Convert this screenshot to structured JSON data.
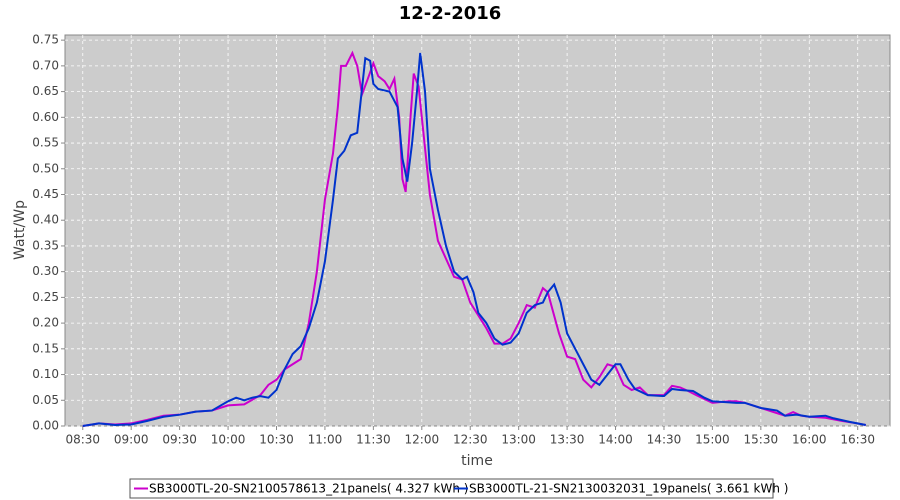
{
  "chart_data": {
    "type": "line",
    "title": "12-2-2016",
    "x_label": "time",
    "y_label": "Watt/Wp",
    "xlim": [
      499,
      1010
    ],
    "ylim": [
      0,
      0.76
    ],
    "xticks": [
      {
        "value": 510,
        "label": "08:30"
      },
      {
        "value": 540,
        "label": "09:00"
      },
      {
        "value": 570,
        "label": "09:30"
      },
      {
        "value": 600,
        "label": "10:00"
      },
      {
        "value": 630,
        "label": "10:30"
      },
      {
        "value": 660,
        "label": "11:00"
      },
      {
        "value": 690,
        "label": "11:30"
      },
      {
        "value": 720,
        "label": "12:00"
      },
      {
        "value": 750,
        "label": "12:30"
      },
      {
        "value": 780,
        "label": "13:00"
      },
      {
        "value": 810,
        "label": "13:30"
      },
      {
        "value": 840,
        "label": "14:00"
      },
      {
        "value": 870,
        "label": "14:30"
      },
      {
        "value": 900,
        "label": "15:00"
      },
      {
        "value": 930,
        "label": "15:30"
      },
      {
        "value": 960,
        "label": "16:00"
      },
      {
        "value": 990,
        "label": "16:30"
      }
    ],
    "yticks": [
      {
        "value": 0,
        "label": "0.00"
      },
      {
        "value": 0.05,
        "label": "0.05"
      },
      {
        "value": 0.1,
        "label": "0.10"
      },
      {
        "value": 0.15,
        "label": "0.15"
      },
      {
        "value": 0.2,
        "label": "0.20"
      },
      {
        "value": 0.25,
        "label": "0.25"
      },
      {
        "value": 0.3,
        "label": "0.30"
      },
      {
        "value": 0.35,
        "label": "0.35"
      },
      {
        "value": 0.4,
        "label": "0.40"
      },
      {
        "value": 0.45,
        "label": "0.45"
      },
      {
        "value": 0.5,
        "label": "0.50"
      },
      {
        "value": 0.55,
        "label": "0.55"
      },
      {
        "value": 0.6,
        "label": "0.60"
      },
      {
        "value": 0.65,
        "label": "0.65"
      },
      {
        "value": 0.7,
        "label": "0.70"
      },
      {
        "value": 0.75,
        "label": "0.75"
      }
    ],
    "grid": true,
    "series": [
      {
        "name": "SB3000TL-20-SN2100578613_21panels( 4.327 kWh )",
        "color": "#cc00cc",
        "x": [
          510,
          520,
          530,
          540,
          550,
          560,
          570,
          580,
          590,
          600,
          610,
          620,
          625,
          630,
          635,
          640,
          645,
          650,
          655,
          660,
          665,
          668,
          670,
          673,
          677,
          680,
          683,
          686,
          690,
          693,
          697,
          700,
          703,
          706,
          708,
          710,
          713,
          715,
          718,
          720,
          725,
          730,
          740,
          745,
          750,
          760,
          765,
          770,
          775,
          780,
          785,
          790,
          795,
          798,
          805,
          810,
          815,
          820,
          825,
          830,
          835,
          840,
          845,
          850,
          855,
          860,
          870,
          875,
          880,
          885,
          890,
          900,
          910,
          915,
          920,
          930,
          940,
          945,
          950,
          955,
          960,
          970,
          980,
          990,
          995
        ],
        "values": [
          0,
          0.005,
          0.003,
          0.005,
          0.012,
          0.02,
          0.022,
          0.028,
          0.03,
          0.04,
          0.042,
          0.06,
          0.08,
          0.09,
          0.11,
          0.12,
          0.13,
          0.2,
          0.3,
          0.44,
          0.53,
          0.62,
          0.7,
          0.7,
          0.725,
          0.7,
          0.645,
          0.67,
          0.705,
          0.68,
          0.67,
          0.655,
          0.675,
          0.6,
          0.48,
          0.455,
          0.6,
          0.685,
          0.66,
          0.6,
          0.45,
          0.36,
          0.29,
          0.285,
          0.24,
          0.19,
          0.16,
          0.16,
          0.17,
          0.2,
          0.235,
          0.23,
          0.268,
          0.26,
          0.18,
          0.135,
          0.13,
          0.09,
          0.075,
          0.095,
          0.12,
          0.115,
          0.08,
          0.07,
          0.075,
          0.06,
          0.06,
          0.078,
          0.075,
          0.068,
          0.06,
          0.045,
          0.048,
          0.048,
          0.045,
          0.035,
          0.025,
          0.02,
          0.027,
          0.02,
          0.018,
          0.016,
          0.01,
          0.005,
          0.002
        ]
      },
      {
        "name": "SB3000TL-21-SN2130032031_19panels( 3.661 kWh )",
        "color": "#0033cc",
        "x": [
          510,
          520,
          530,
          540,
          550,
          560,
          570,
          580,
          590,
          600,
          605,
          610,
          615,
          620,
          625,
          630,
          635,
          640,
          645,
          650,
          655,
          660,
          665,
          668,
          672,
          676,
          680,
          685,
          688,
          690,
          693,
          700,
          705,
          708,
          711,
          714,
          717,
          719,
          722,
          725,
          730,
          735,
          740,
          745,
          748,
          752,
          755,
          760,
          765,
          770,
          775,
          780,
          785,
          790,
          795,
          798,
          802,
          806,
          810,
          815,
          820,
          825,
          830,
          835,
          840,
          843,
          848,
          852,
          860,
          870,
          875,
          880,
          888,
          895,
          900,
          915,
          920,
          930,
          940,
          945,
          952,
          960,
          970,
          975,
          985,
          995
        ],
        "values": [
          0,
          0.005,
          0.002,
          0.003,
          0.01,
          0.018,
          0.022,
          0.028,
          0.03,
          0.048,
          0.055,
          0.05,
          0.055,
          0.058,
          0.055,
          0.07,
          0.11,
          0.14,
          0.155,
          0.19,
          0.24,
          0.32,
          0.44,
          0.52,
          0.535,
          0.565,
          0.57,
          0.715,
          0.71,
          0.665,
          0.655,
          0.65,
          0.62,
          0.52,
          0.475,
          0.55,
          0.65,
          0.725,
          0.65,
          0.5,
          0.42,
          0.35,
          0.3,
          0.285,
          0.29,
          0.26,
          0.22,
          0.2,
          0.17,
          0.158,
          0.162,
          0.18,
          0.22,
          0.235,
          0.24,
          0.26,
          0.275,
          0.24,
          0.18,
          0.15,
          0.12,
          0.09,
          0.08,
          0.1,
          0.12,
          0.12,
          0.09,
          0.072,
          0.06,
          0.058,
          0.072,
          0.07,
          0.068,
          0.055,
          0.048,
          0.045,
          0.045,
          0.035,
          0.03,
          0.02,
          0.022,
          0.018,
          0.02,
          0.015,
          0.008,
          0.002
        ]
      }
    ]
  }
}
